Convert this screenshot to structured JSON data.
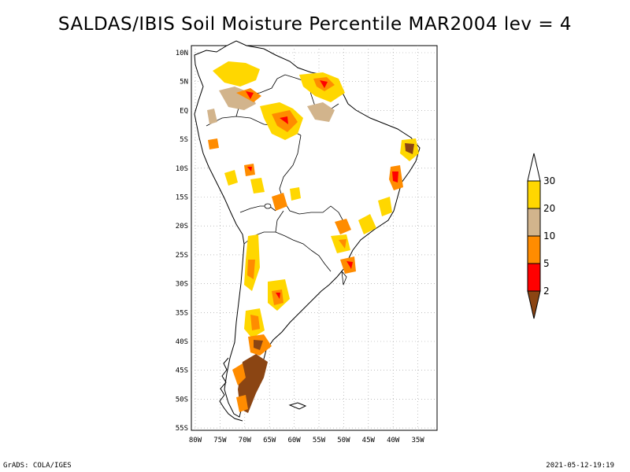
{
  "title": "SALDAS/IBIS Soil Moisture Percentile MAR2004 lev = 4",
  "map": {
    "lon_labels": [
      "80W",
      "75W",
      "70W",
      "65W",
      "60W",
      "55W",
      "50W",
      "45W",
      "40W",
      "35W"
    ],
    "lat_labels": [
      "10N",
      "5N",
      "EQ",
      "5S",
      "10S",
      "15S",
      "20S",
      "25S",
      "30S",
      "35S",
      "40S",
      "45S",
      "50S",
      "55S"
    ]
  },
  "legend": {
    "labels": [
      "30",
      "20",
      "10",
      "5",
      "2"
    ],
    "colors": {
      "above_30": "#ffffff",
      "20_30": "#ffd700",
      "10_20": "#d2b48c",
      "5_10": "#ff8c00",
      "2_5": "#ff0000",
      "below_2": "#8b4513"
    }
  },
  "footer": {
    "left": "GrADS: COLA/IGES",
    "right": "2021-05-12-19:19"
  }
}
